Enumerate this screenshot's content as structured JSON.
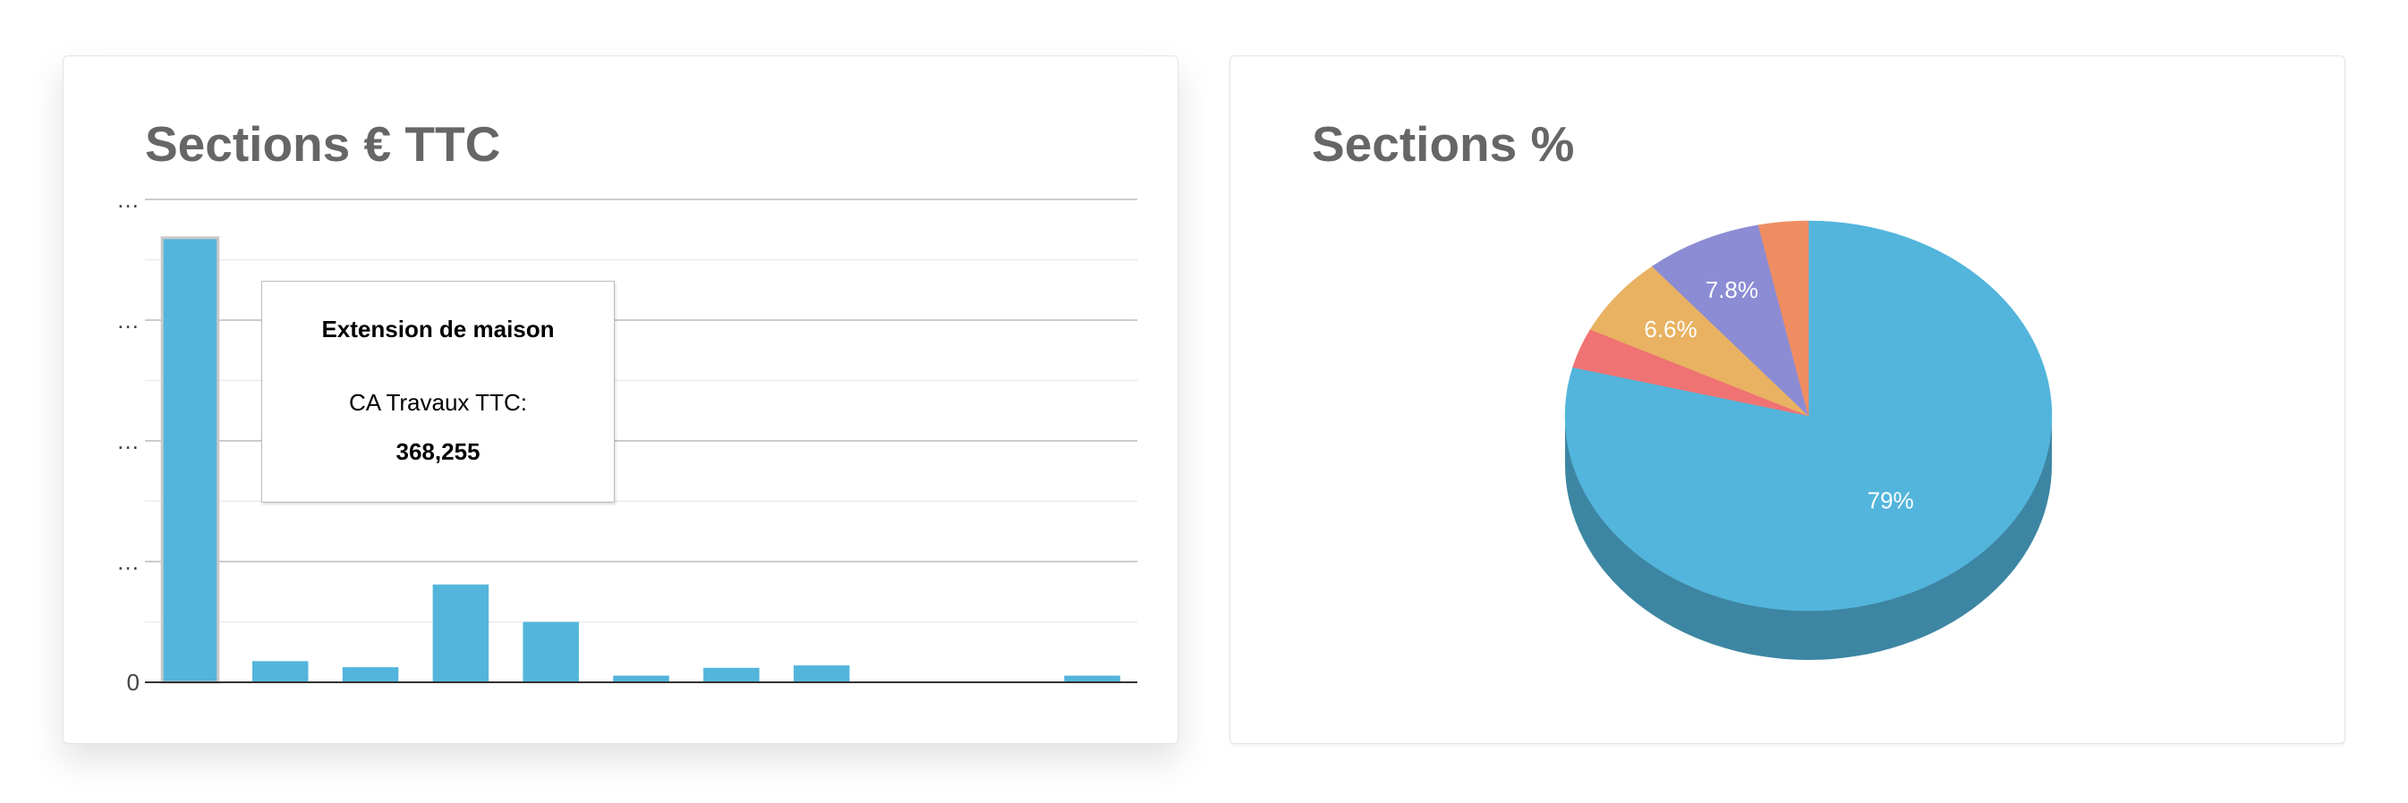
{
  "charts": [
    {
      "title": "Sections € TTC",
      "chart_data": {
        "type": "bar",
        "title": "Sections € TTC",
        "xlabel": "",
        "ylabel": "",
        "y_tick_labels": [
          "0",
          "…",
          "…",
          "…",
          "…"
        ],
        "ylim": [
          0,
          400000
        ],
        "grid": true,
        "values": [
          368255,
          17500,
          12500,
          81000,
          50000,
          5500,
          12000,
          14000,
          0,
          0,
          5500
        ],
        "color": "#53b5dc"
      },
      "tooltip": {
        "title": "Extension de maison",
        "label": "CA Travaux TTC:",
        "value": "368,255"
      }
    },
    {
      "title": "Sections %",
      "chart_data": {
        "type": "pie",
        "title": "Sections %",
        "three_d": true,
        "slices": [
          {
            "value": 79.0,
            "label": "79%",
            "color": "#53b5dc"
          },
          {
            "value": 3.3,
            "label": "",
            "color": "#ef7373"
          },
          {
            "value": 6.6,
            "label": "6.6%",
            "color": "#e8b262"
          },
          {
            "value": 7.8,
            "label": "7.8%",
            "color": "#8c8cd4"
          },
          {
            "value": 3.3,
            "label": "",
            "color": "#ef8d62"
          }
        ]
      }
    }
  ]
}
